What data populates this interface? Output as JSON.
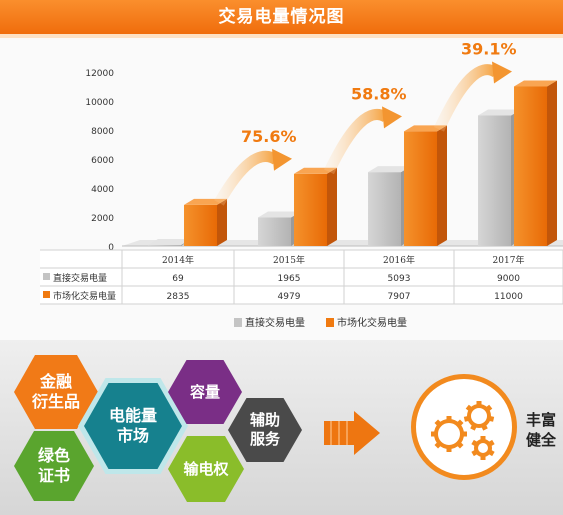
{
  "header": {
    "title": "交易电量情况图"
  },
  "chart_data": {
    "type": "bar",
    "categories": [
      "2014年",
      "2015年",
      "2016年",
      "2017年"
    ],
    "series": [
      {
        "name": "直接交易电量",
        "values": [
          69,
          1965,
          5093,
          9000
        ],
        "color": "#c4c4c4"
      },
      {
        "name": "市场化交易电量",
        "values": [
          2835,
          4979,
          7907,
          11000
        ],
        "color": "#f07a10"
      }
    ],
    "ylim": [
      0,
      12000
    ],
    "yticks": [
      "0",
      "2000",
      "4000",
      "6000",
      "8000",
      "10000",
      "12000"
    ],
    "growth_labels": [
      "75.6%",
      "58.8%",
      "39.1%"
    ],
    "table": {
      "rows": [
        {
          "label": "直接交易电量",
          "values": [
            "69",
            "1965",
            "5093",
            "9000"
          ]
        },
        {
          "label": "市场化交易电量",
          "values": [
            "2835",
            "4979",
            "7907",
            "11000"
          ]
        }
      ]
    },
    "legend": [
      "直接交易电量",
      "市场化交易电量"
    ],
    "legend_position": "bottom",
    "grid": false
  },
  "lower": {
    "hexagons": {
      "finance": "金融\n衍生品",
      "green": "绿色\n证书",
      "center": "电能量\n市场",
      "capacity": "容量",
      "transmission": "输电权",
      "ancillary": "辅助\n服务"
    },
    "right_text": "丰富\n健全"
  },
  "colors": {
    "accent": "#f07a10",
    "gray_bar": "#c4c4c4",
    "teal": "#16818e",
    "purple": "#7a2e86",
    "green": "#5aa52e"
  }
}
